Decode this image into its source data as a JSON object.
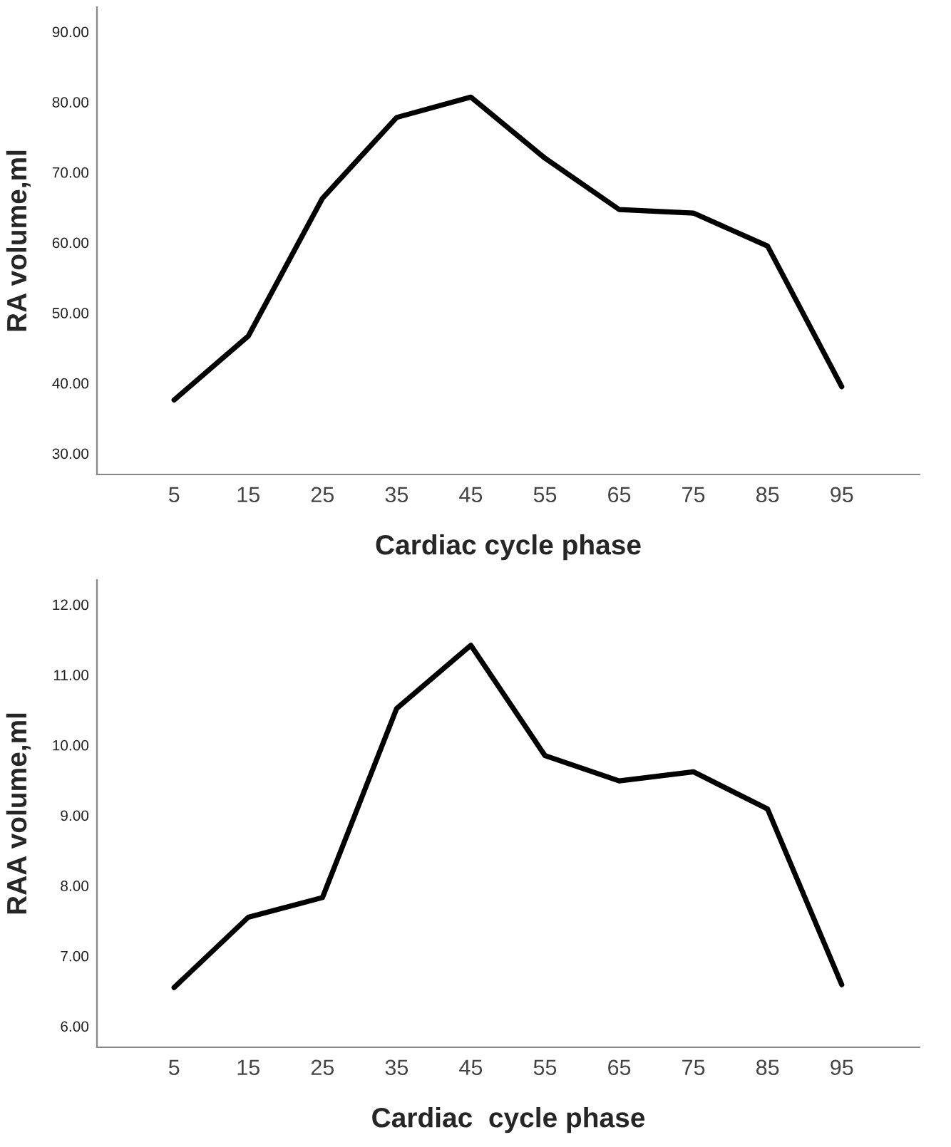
{
  "chart_data": [
    {
      "type": "line",
      "xlabel": "Cardiac cycle phase",
      "ylabel": "RA volume,ml",
      "categories": [
        "5",
        "15",
        "25",
        "35",
        "45",
        "55",
        "65",
        "75",
        "85",
        "95"
      ],
      "series": [
        {
          "color": "#000000",
          "values": [
            37.6,
            46.7,
            66.3,
            77.8,
            80.7,
            72.0,
            64.7,
            64.2,
            59.5,
            39.5
          ]
        }
      ],
      "ylim": [
        27,
        93.5
      ],
      "yticks": [
        {
          "value": 30,
          "label": "30.00"
        },
        {
          "value": 40,
          "label": "40.00"
        },
        {
          "value": 50,
          "label": "50.00"
        },
        {
          "value": 60,
          "label": "60.00"
        },
        {
          "value": 70,
          "label": "70.00"
        },
        {
          "value": 80,
          "label": "80.00"
        },
        {
          "value": 90,
          "label": "90.00"
        }
      ],
      "grid": false,
      "legend": false,
      "marker": "none",
      "line_style": "solid"
    },
    {
      "type": "line",
      "xlabel": "Cardiac  cycle phase",
      "ylabel": "RAA volume,ml",
      "categories": [
        "5",
        "15",
        "25",
        "35",
        "45",
        "55",
        "65",
        "75",
        "85",
        "95"
      ],
      "series": [
        {
          "color": "#000000",
          "values": [
            6.55,
            7.55,
            7.83,
            10.52,
            11.42,
            9.85,
            9.49,
            9.62,
            9.09,
            6.59
          ]
        }
      ],
      "ylim": [
        5.7,
        12.35
      ],
      "yticks": [
        {
          "value": 6,
          "label": "6.00"
        },
        {
          "value": 7,
          "label": "7.00"
        },
        {
          "value": 8,
          "label": "8.00"
        },
        {
          "value": 9,
          "label": "9.00"
        },
        {
          "value": 10,
          "label": "10.00"
        },
        {
          "value": 11,
          "label": "11.00"
        },
        {
          "value": 12,
          "label": "12.00"
        }
      ],
      "grid": false,
      "legend": false,
      "marker": "none",
      "line_style": "solid"
    }
  ]
}
